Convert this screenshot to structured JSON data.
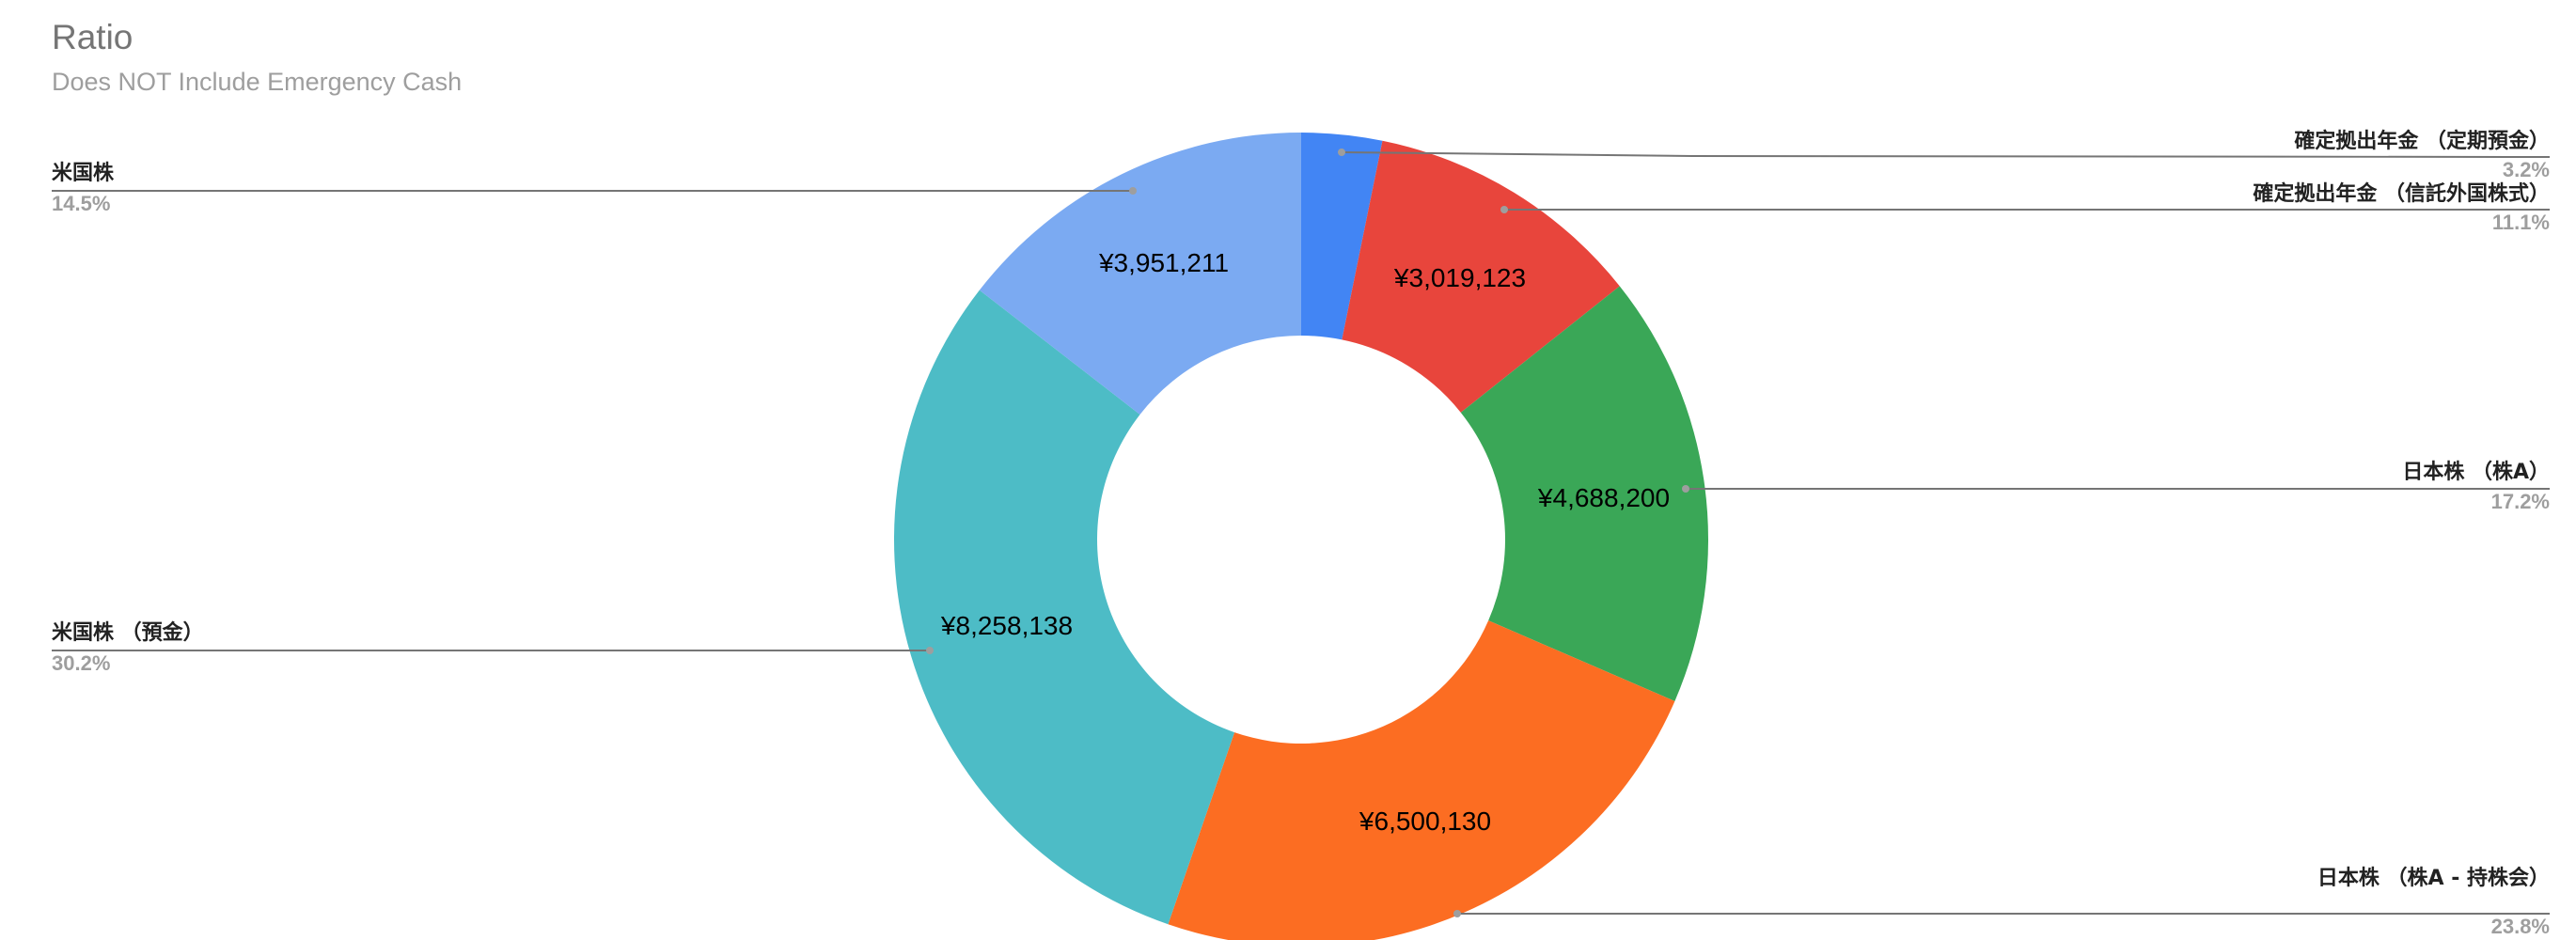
{
  "chart": {
    "title": "Ratio",
    "subtitle": "Does NOT Include Emergency Cash"
  },
  "chart_data": {
    "type": "pie",
    "donut": true,
    "title": "Ratio",
    "subtitle": "Does NOT Include Emergency Cash",
    "legend_position": "labeled (leader lines)",
    "start_angle": "12 o'clock, clockwise",
    "slices": [
      {
        "label": "確定拠出年金 （定期預金）",
        "value": null,
        "value_label": "",
        "percent": "3.2%",
        "percent_num": 3.2,
        "color": "#4285f4"
      },
      {
        "label": "確定拠出年金 （信託外国株式）",
        "value": 3019123,
        "value_label": "¥3,019,123",
        "percent": "11.1%",
        "percent_num": 11.1,
        "color": "#e8453c"
      },
      {
        "label": "日本株 （株A）",
        "value": 4688200,
        "value_label": "¥4,688,200",
        "percent": "17.2%",
        "percent_num": 17.2,
        "color": "#3aa757"
      },
      {
        "label": "日本株 （株A - 持株会）",
        "value": 6500130,
        "value_label": "¥6,500,130",
        "percent": "23.8%",
        "percent_num": 23.8,
        "color": "#fc6d22"
      },
      {
        "label": "米国株 （預金）",
        "value": 8258138,
        "value_label": "¥8,258,138",
        "percent": "30.2%",
        "percent_num": 30.2,
        "color": "#4dbcc6"
      },
      {
        "label": "米国株",
        "value": 3951211,
        "value_label": "¥3,951,211",
        "percent": "14.5%",
        "percent_num": 14.5,
        "color": "#7baaf2"
      }
    ]
  }
}
